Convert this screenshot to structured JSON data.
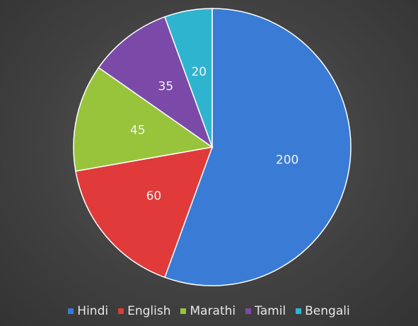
{
  "chart_data": {
    "type": "pie",
    "categories": [
      "Hindi",
      "English",
      "Marathi",
      "Tamil",
      "Bengali"
    ],
    "values": [
      200,
      60,
      45,
      35,
      20
    ],
    "colors": [
      "#3a7bd5",
      "#e03a3a",
      "#98c43c",
      "#7b4aa8",
      "#2fb4cf"
    ],
    "legend": "bottom"
  }
}
